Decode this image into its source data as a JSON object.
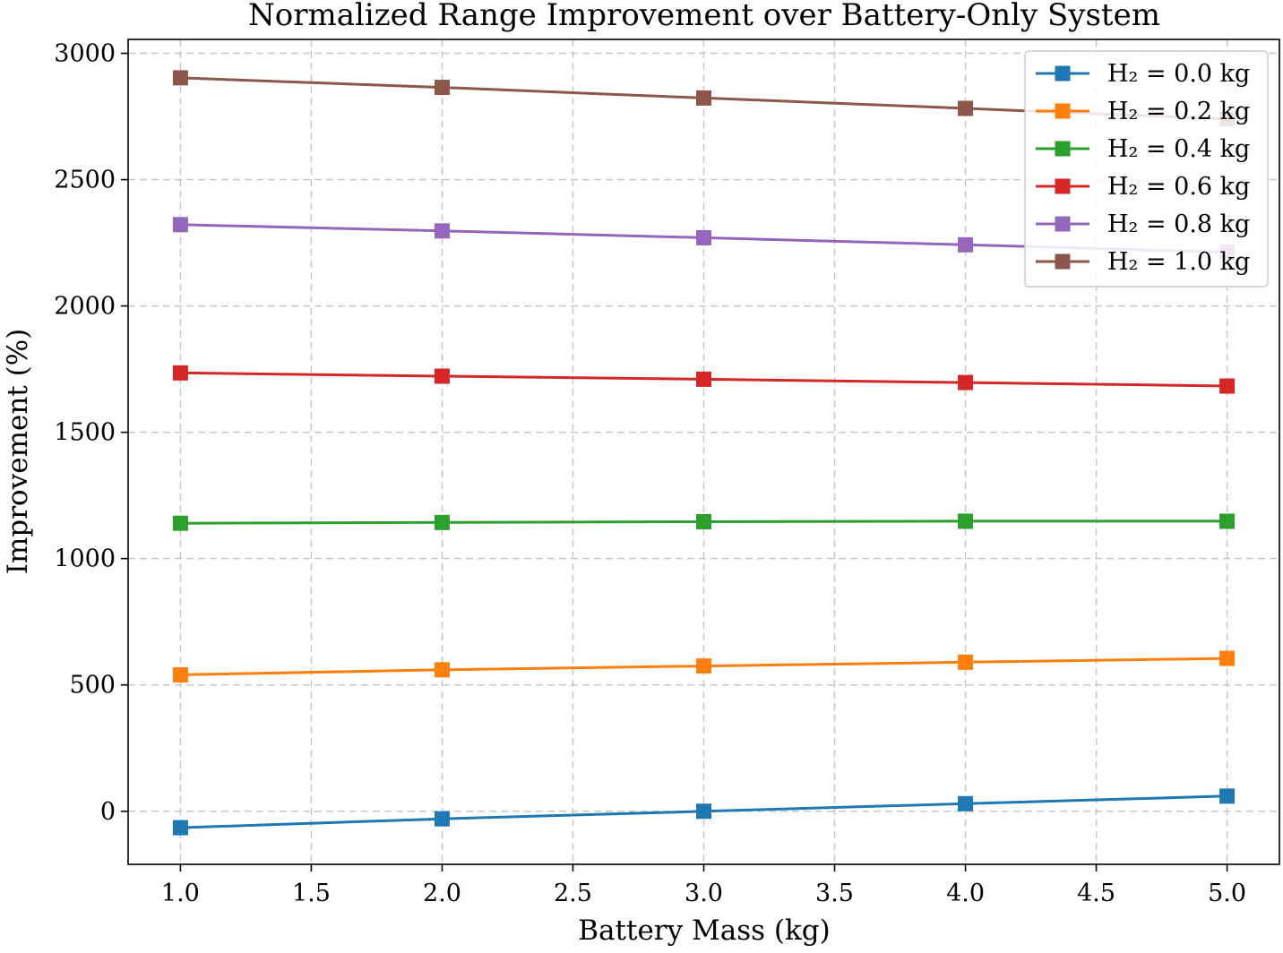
{
  "chart_data": {
    "type": "line",
    "title": "Normalized Range Improvement over Battery-Only System",
    "xlabel": "Battery Mass (kg)",
    "ylabel": "Improvement (%)",
    "x": [
      1.0,
      2.0,
      3.0,
      4.0,
      5.0
    ],
    "xlim": [
      0.8,
      5.2
    ],
    "ylim": [
      -210,
      3055
    ],
    "xticks": [
      1.0,
      1.5,
      2.0,
      2.5,
      3.0,
      3.5,
      4.0,
      4.5,
      5.0
    ],
    "xtick_labels": [
      "1.0",
      "1.5",
      "2.0",
      "2.5",
      "3.0",
      "3.5",
      "4.0",
      "4.5",
      "5.0"
    ],
    "yticks": [
      0,
      500,
      1000,
      1500,
      2000,
      2500,
      3000
    ],
    "ytick_labels": [
      "0",
      "500",
      "1000",
      "1500",
      "2000",
      "2500",
      "3000"
    ],
    "grid": true,
    "marker": "square",
    "legend_position": "top-right",
    "series": [
      {
        "name": "H₂ = 0.0 kg",
        "color": "#1f77b4",
        "values": [
          -65,
          -30,
          0,
          30,
          60
        ]
      },
      {
        "name": "H₂ = 0.2 kg",
        "color": "#ff7f0e",
        "values": [
          540,
          560,
          575,
          590,
          605
        ]
      },
      {
        "name": "H₂ = 0.4 kg",
        "color": "#2ca02c",
        "values": [
          1140,
          1143,
          1146,
          1148,
          1148
        ]
      },
      {
        "name": "H₂ = 0.6 kg",
        "color": "#d62728",
        "values": [
          1735,
          1722,
          1710,
          1697,
          1683
        ]
      },
      {
        "name": "H₂ = 0.8 kg",
        "color": "#9467bd",
        "values": [
          2322,
          2297,
          2270,
          2242,
          2213
        ]
      },
      {
        "name": "H₂ = 1.0 kg",
        "color": "#8c564b",
        "values": [
          2903,
          2865,
          2823,
          2782,
          2740
        ]
      }
    ]
  }
}
